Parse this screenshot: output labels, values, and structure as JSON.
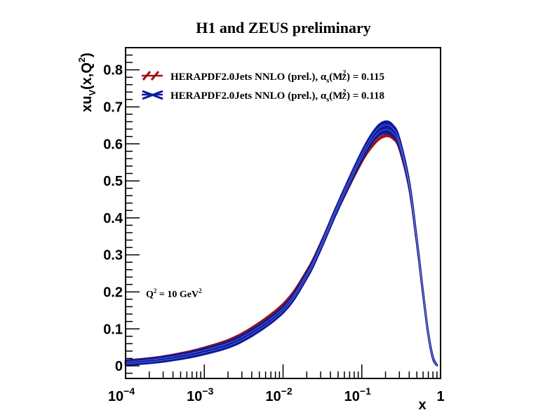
{
  "chart_data": {
    "type": "line",
    "title": "H1 and ZEUS preliminary",
    "xlabel": "x",
    "ylabel": "xu_V(x,Q^2)",
    "xscale": "log",
    "xlim": [
      0.0001,
      1
    ],
    "ylim": [
      -0.034,
      0.86
    ],
    "x_tick_labels": [
      {
        "base": "10",
        "exp": "−4",
        "value": 0.0001
      },
      {
        "base": "10",
        "exp": "−3",
        "value": 0.001
      },
      {
        "base": "10",
        "exp": "−2",
        "value": 0.01
      },
      {
        "base": "10",
        "exp": "−1",
        "value": 0.1
      },
      {
        "base": "1",
        "exp": "",
        "value": 1
      }
    ],
    "y_ticks": [
      0,
      0.1,
      0.2,
      0.3,
      0.4,
      0.5,
      0.6,
      0.7,
      0.8
    ],
    "y_tick_labels": [
      "0",
      "0.1",
      "0.2",
      "0.3",
      "0.4",
      "0.5",
      "0.6",
      "0.7",
      "0.8"
    ],
    "annotation": {
      "text": "Q",
      "sup1": "2",
      "mid": " = 10 GeV",
      "sup2": "2"
    },
    "legend": {
      "position": "top-left",
      "entries": [
        {
          "prefix": "HERAPDF2.0Jets NNLO (prel.), ",
          "alpha": "α",
          "sub_s": "s",
          "paren_open": "(M",
          "sup": "2",
          "sub_z": "Z",
          "suffix": ") = 0.115",
          "color": "#a01010"
        },
        {
          "prefix": "HERAPDF2.0Jets NNLO (prel.), ",
          "alpha": "α",
          "sub_s": "s",
          "paren_open": "(M",
          "sup": "2",
          "sub_z": "Z",
          "suffix": ") = 0.118",
          "color": "#0a1aa0"
        }
      ]
    },
    "series": [
      {
        "name": "HERAPDF2.0Jets NNLO (prel.), alpha_s(M_Z^2) = 0.115",
        "color": "#a01010",
        "x": [
          0.0001,
          0.0003,
          0.001,
          0.003,
          0.01,
          0.02,
          0.03,
          0.05,
          0.1,
          0.15,
          0.2,
          0.25,
          0.3,
          0.4,
          0.5,
          0.6,
          0.7,
          0.8,
          0.9
        ],
        "y": [
          0.009,
          0.02,
          0.043,
          0.08,
          0.16,
          0.25,
          0.325,
          0.43,
          0.56,
          0.615,
          0.632,
          0.625,
          0.595,
          0.485,
          0.335,
          0.195,
          0.085,
          0.022,
          0.002
        ],
        "band": [
          0.006,
          0.006,
          0.007,
          0.008,
          0.008,
          0.008,
          0.008,
          0.008,
          0.01,
          0.012,
          0.012,
          0.012,
          0.01,
          0.008,
          0.006,
          0.005,
          0.004,
          0.003,
          0.001
        ]
      },
      {
        "name": "HERAPDF2.0Jets NNLO (prel.), alpha_s(M_Z^2) = 0.118",
        "color": "#0a1aa0",
        "x": [
          0.0001,
          0.0003,
          0.001,
          0.003,
          0.01,
          0.02,
          0.03,
          0.05,
          0.1,
          0.15,
          0.2,
          0.25,
          0.3,
          0.4,
          0.5,
          0.6,
          0.7,
          0.8,
          0.9
        ],
        "y": [
          0.008,
          0.018,
          0.039,
          0.074,
          0.152,
          0.245,
          0.322,
          0.432,
          0.568,
          0.628,
          0.645,
          0.635,
          0.603,
          0.49,
          0.338,
          0.196,
          0.085,
          0.022,
          0.002
        ],
        "band": [
          0.006,
          0.007,
          0.008,
          0.009,
          0.009,
          0.009,
          0.009,
          0.01,
          0.012,
          0.014,
          0.016,
          0.015,
          0.013,
          0.01,
          0.007,
          0.005,
          0.004,
          0.003,
          0.001
        ]
      }
    ],
    "grid": false
  }
}
